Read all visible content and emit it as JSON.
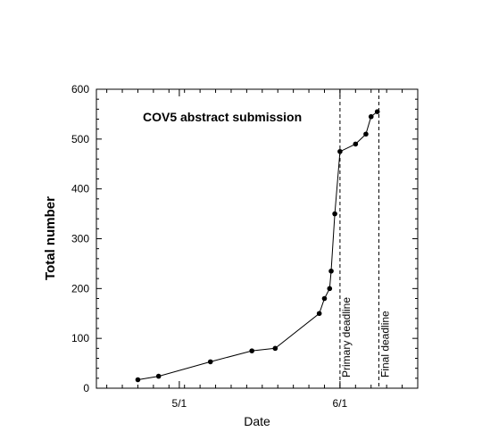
{
  "chart_data": {
    "type": "line",
    "title": "COV5 abstract submission",
    "xlabel": "Date",
    "ylabel": "Total number",
    "x_axis_type": "day-of-year",
    "xlim": [
      100,
      162
    ],
    "ylim": [
      0,
      600
    ],
    "y_ticks": [
      0,
      100,
      200,
      300,
      400,
      500,
      600
    ],
    "x_ticks": [
      {
        "value": 116,
        "label": "5/1"
      },
      {
        "value": 147,
        "label": "6/1"
      }
    ],
    "series": [
      {
        "x": [
          108,
          112,
          122,
          130,
          134.5,
          143,
          144,
          145,
          145.3,
          146,
          147,
          150,
          152,
          153,
          154.2
        ],
        "values": [
          17,
          24,
          53,
          75,
          80,
          150,
          180,
          200,
          235,
          350,
          475,
          490,
          510,
          545,
          555
        ],
        "marker": "circle",
        "color": "#000000"
      }
    ],
    "vlines": [
      {
        "x": 147,
        "style": "dashed",
        "label": "Primary deadline"
      },
      {
        "x": 154.5,
        "style": "dashed",
        "label": "Final deadline"
      }
    ],
    "grid": false,
    "legend": "none"
  }
}
